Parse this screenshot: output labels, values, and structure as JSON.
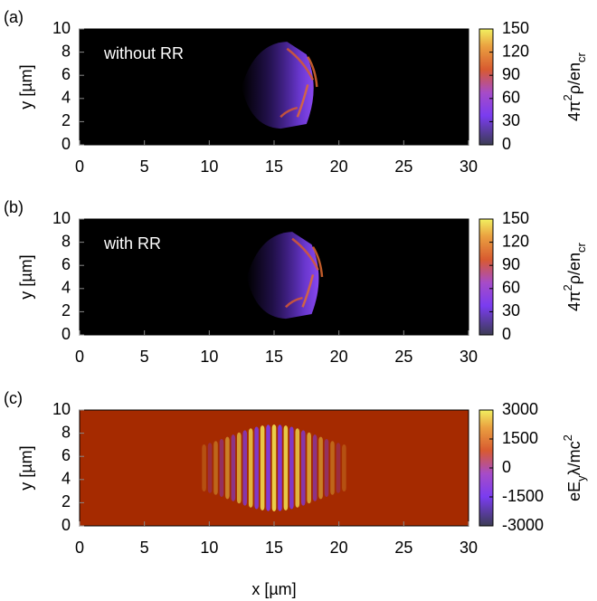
{
  "chart_data": [
    {
      "type": "heatmap",
      "panel_label": "(a)",
      "annotation": "without RR",
      "ylabel": "y [µm]",
      "xlim": [
        0,
        30
      ],
      "xticks": [
        0,
        5,
        10,
        15,
        20,
        25,
        30
      ],
      "ylim": [
        0,
        10
      ],
      "yticks": [
        0,
        2,
        4,
        6,
        8,
        10
      ],
      "clim": [
        0,
        150
      ],
      "cticks": [
        0,
        30,
        60,
        90,
        120,
        150
      ],
      "colorbar_label": [
        "4π",
        "2",
        "ρ/en",
        "cr"
      ],
      "background": "#000000"
    },
    {
      "type": "heatmap",
      "panel_label": "(b)",
      "annotation": "with RR",
      "ylabel": "y [µm]",
      "xlim": [
        0,
        30
      ],
      "xticks": [
        0,
        5,
        10,
        15,
        20,
        25,
        30
      ],
      "ylim": [
        0,
        10
      ],
      "yticks": [
        0,
        2,
        4,
        6,
        8,
        10
      ],
      "clim": [
        0,
        150
      ],
      "cticks": [
        0,
        30,
        60,
        90,
        120,
        150
      ],
      "colorbar_label": [
        "4π",
        "2",
        "ρ/en",
        "cr"
      ],
      "background": "#000000"
    },
    {
      "type": "field",
      "panel_label": "(c)",
      "ylabel": "y [µm]",
      "xlabel": "x [µm]",
      "xlim": [
        0,
        30
      ],
      "xticks": [
        0,
        5,
        10,
        15,
        20,
        25,
        30
      ],
      "ylim": [
        0,
        10
      ],
      "yticks": [
        0,
        2,
        4,
        6,
        8,
        10
      ],
      "clim": [
        -3000,
        3000
      ],
      "cticks": [
        -3000,
        -1500,
        0,
        1500,
        3000
      ],
      "colorbar_label": [
        "eE",
        "y",
        "λ/mc",
        "2"
      ],
      "background": "#a52a00"
    }
  ]
}
